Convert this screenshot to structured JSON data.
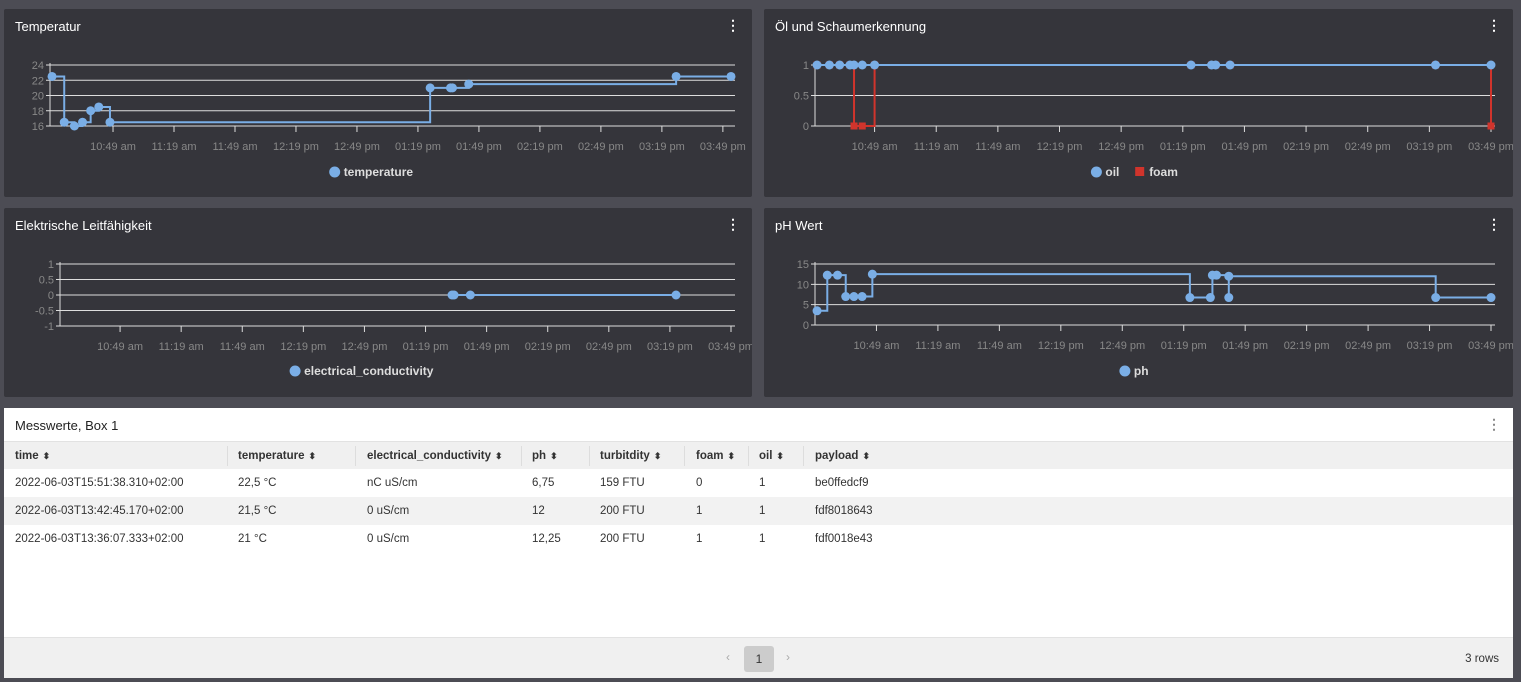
{
  "colors": {
    "primary": "#7aaee6",
    "foam": "#d0342c"
  },
  "charts": [
    {
      "id": "temp",
      "title": "Temperatur",
      "menu": "⋮",
      "ylim": [
        16,
        24
      ],
      "yticks": [
        16,
        18,
        20,
        22,
        24
      ],
      "xlim": [
        -31,
        304
      ],
      "xticks": [
        0,
        30,
        60,
        90,
        120,
        150,
        180,
        210,
        240,
        270,
        300
      ],
      "xtick_labels": [
        "10:49 am",
        "11:19 am",
        "11:49 am",
        "12:19 pm",
        "12:49 pm",
        "01:19 pm",
        "01:49 pm",
        "02:19 pm",
        "02:49 pm",
        "03:19 pm",
        "03:49 pm"
      ],
      "x": [
        -30,
        -24,
        -19,
        -15,
        -11,
        -7,
        -1.5,
        156,
        166,
        167,
        175,
        277,
        304
      ],
      "series": [
        {
          "name": "temperature",
          "color": "#7aaee6",
          "marker": "circle",
          "values": [
            22.5,
            16.5,
            16,
            16.5,
            18,
            18.5,
            16.5,
            21,
            21,
            21,
            21.5,
            22.5,
            22.5
          ]
        }
      ]
    },
    {
      "id": "oil",
      "title": "Öl und Schaumerkennung",
      "menu": "⋮",
      "ylim": [
        0,
        1
      ],
      "yticks": [
        0,
        0.5,
        1
      ],
      "xlim": [
        -29,
        300
      ],
      "xticks": [
        0,
        30,
        60,
        90,
        120,
        150,
        180,
        210,
        240,
        270,
        300
      ],
      "xtick_labels": [
        "10:49 am",
        "11:19 am",
        "11:49 am",
        "12:19 pm",
        "12:49 pm",
        "01:19 pm",
        "01:49 pm",
        "02:19 pm",
        "02:49 pm",
        "03:19 pm",
        "03:49 pm"
      ],
      "x": [
        -28,
        -22,
        -17,
        -12,
        -10,
        -6,
        0,
        154,
        164,
        166,
        173,
        273,
        300
      ],
      "series": [
        {
          "name": "oil",
          "color": "#7aaee6",
          "marker": "circle",
          "values": [
            1,
            1,
            1,
            1,
            1,
            1,
            1,
            1,
            1,
            1,
            1,
            1,
            1
          ]
        },
        {
          "name": "foam",
          "color": "#d0342c",
          "marker": "square",
          "values": [
            1,
            1,
            1,
            1,
            0,
            0,
            1,
            1,
            1,
            1,
            1,
            1,
            0
          ]
        }
      ]
    },
    {
      "id": "ec",
      "title": "Elektrische Leitfähigkeit",
      "menu": "⋮",
      "ylim": [
        -1,
        1
      ],
      "yticks": [
        -1,
        -0.5,
        0,
        0.5,
        1
      ],
      "xlim": [
        -29.5,
        300
      ],
      "xticks": [
        0,
        30,
        60,
        90,
        120,
        150,
        180,
        210,
        240,
        270,
        300
      ],
      "xtick_labels": [
        "10:49 am",
        "11:19 am",
        "11:49 am",
        "12:19 pm",
        "12:49 pm",
        "01:19 pm",
        "01:49 pm",
        "02:19 pm",
        "02:49 pm",
        "03:19 pm",
        "03:49 pm"
      ],
      "x": [
        163,
        164,
        172,
        273
      ],
      "series": [
        {
          "name": "electrical_conductivity",
          "color": "#7aaee6",
          "marker": "circle",
          "values": [
            0,
            0,
            0,
            0
          ]
        }
      ]
    },
    {
      "id": "ph",
      "title": "pH Wert",
      "menu": "⋮",
      "ylim": [
        0,
        15
      ],
      "yticks": [
        0,
        5,
        10,
        15
      ],
      "xlim": [
        -30,
        300
      ],
      "xticks": [
        0,
        30,
        60,
        90,
        120,
        150,
        180,
        210,
        240,
        270,
        300
      ],
      "xtick_labels": [
        "10:49 am",
        "11:19 am",
        "11:49 am",
        "12:19 pm",
        "12:49 pm",
        "01:19 pm",
        "01:49 pm",
        "02:19 pm",
        "02:49 pm",
        "03:19 pm",
        "03:49 pm"
      ],
      "x": [
        -29,
        -24,
        -19,
        -15,
        -11,
        -7,
        -2,
        153,
        163,
        164,
        166,
        172,
        172,
        273,
        300
      ],
      "series": [
        {
          "name": "ph",
          "color": "#7aaee6",
          "marker": "circle",
          "values": [
            3.5,
            12.25,
            12.25,
            7,
            7,
            7,
            12.5,
            6.75,
            6.75,
            12.25,
            12.25,
            6.75,
            12,
            6.75,
            6.75
          ]
        }
      ]
    }
  ],
  "table": {
    "title": "Messwerte, Box 1",
    "menu": "⋮",
    "columns": [
      "time",
      "temperature",
      "electrical_conductivity",
      "ph",
      "turbitdity",
      "foam",
      "oil",
      "payload"
    ],
    "sort_icon": "⬍",
    "rows": [
      [
        "2022-06-03T15:51:38.310+02:00",
        "22,5 °C",
        "nC uS/cm",
        "6,75",
        "159 FTU",
        "0",
        "1",
        "be0ffedcf9"
      ],
      [
        "2022-06-03T13:42:45.170+02:00",
        "21,5 °C",
        "0 uS/cm",
        "12",
        "200 FTU",
        "1",
        "1",
        "fdf8018643"
      ],
      [
        "2022-06-03T13:36:07.333+02:00",
        "21 °C",
        "0 uS/cm",
        "12,25",
        "200 FTU",
        "1",
        "1",
        "fdf0018e43"
      ]
    ],
    "pagination": {
      "prev": "‹",
      "page": "1",
      "next": "›"
    },
    "row_count": "3 rows"
  }
}
